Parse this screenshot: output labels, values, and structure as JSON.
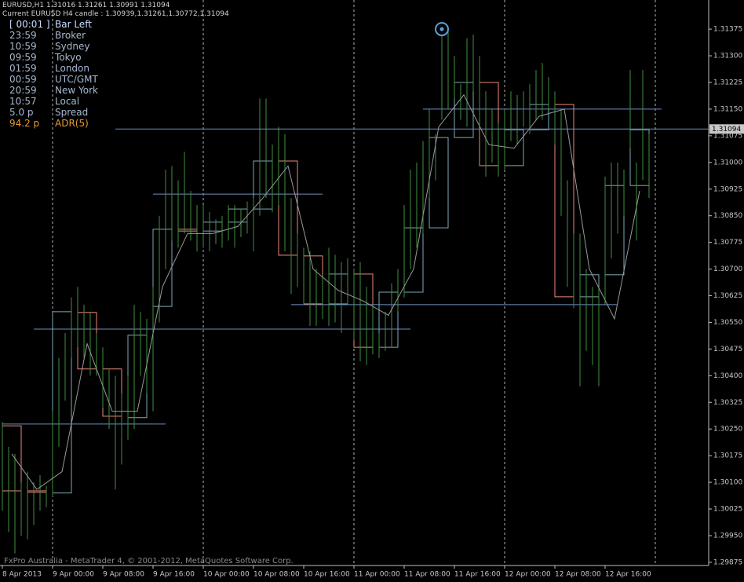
{
  "header": {
    "line1": "EURUSD,H1  1.31016 1.31261 1.30991 1.31094",
    "line2": "Current EURUSD H4 candle : 1.30939,1.31261,1.30772,1.31094"
  },
  "panel": [
    [
      "[ 00:01 ]",
      "Bar Left"
    ],
    [
      "23:59",
      "Broker"
    ],
    [
      "10:59",
      "Sydney"
    ],
    [
      "09:59",
      "Tokyo"
    ],
    [
      "01:59",
      "London"
    ],
    [
      "00:59",
      "UTC/GMT"
    ],
    [
      "20:59",
      "New York"
    ],
    [
      "10:57",
      "Local"
    ],
    [
      "5.0 p",
      "Spread"
    ],
    [
      "94.2 p",
      "ADR(5)"
    ]
  ],
  "copyright": "FxPro Australia - MetaTrader 4, © 2001-2012, MetaQuotes Software Corp.",
  "chart_data": {
    "type": "candlestick",
    "ylim": [
      1.29866,
      1.31457
    ],
    "yticks": [
      {
        "value": 1.31375,
        "label": "1.31375"
      },
      {
        "value": 1.313,
        "label": "1.31300"
      },
      {
        "value": 1.31225,
        "label": "1.31225"
      },
      {
        "value": 1.3115,
        "label": "1.31150"
      },
      {
        "value": 1.31075,
        "label": "1.31075"
      },
      {
        "value": 1.31,
        "label": "1.31000"
      },
      {
        "value": 1.30925,
        "label": "1.30925"
      },
      {
        "value": 1.3085,
        "label": "1.30850"
      },
      {
        "value": 1.30775,
        "label": "1.30775"
      },
      {
        "value": 1.307,
        "label": "1.30700"
      },
      {
        "value": 1.30625,
        "label": "1.30625"
      },
      {
        "value": 1.3055,
        "label": "1.30550"
      },
      {
        "value": 1.30475,
        "label": "1.30475"
      },
      {
        "value": 1.304,
        "label": "1.30400"
      },
      {
        "value": 1.30325,
        "label": "1.30325"
      },
      {
        "value": 1.3025,
        "label": "1.30250"
      },
      {
        "value": 1.30175,
        "label": "1.30175"
      },
      {
        "value": 1.301,
        "label": "1.30100"
      },
      {
        "value": 1.30025,
        "label": "1.30025"
      },
      {
        "value": 1.2995,
        "label": "1.29950"
      },
      {
        "value": 1.29875,
        "label": "1.29875"
      }
    ],
    "xticks": [
      {
        "value": 0,
        "label": "8 Apr 2013"
      },
      {
        "value": 8,
        "label": "9 Apr 00:00"
      },
      {
        "value": 16,
        "label": "9 Apr 08:00"
      },
      {
        "value": 24,
        "label": "9 Apr 16:00"
      },
      {
        "value": 32,
        "label": "10 Apr 00:00"
      },
      {
        "value": 40,
        "label": "10 Apr 08:00"
      },
      {
        "value": 48,
        "label": "10 Apr 16:00"
      },
      {
        "value": 56,
        "label": "11 Apr 00:00"
      },
      {
        "value": 64,
        "label": "11 Apr 08:00"
      },
      {
        "value": 72,
        "label": "11 Apr 16:00"
      },
      {
        "value": 80,
        "label": "12 Apr 00:00"
      },
      {
        "value": 88,
        "label": "12 Apr 08:00"
      },
      {
        "value": 96,
        "label": "12 Apr 16:00"
      }
    ],
    "day_separators": [
      8,
      32,
      56,
      80,
      104
    ],
    "up_color": "#7fa8b8",
    "down_color": "#f08878",
    "bar_color": "#3f8f3f",
    "ma_color": "#9a9a9a",
    "level_color": "#6f8fc0",
    "h4_candles": [
      [
        1.30259,
        1.30076
      ],
      [
        1.30076,
        1.30072
      ],
      [
        1.3007,
        1.3058
      ],
      [
        1.30578,
        1.30419
      ],
      [
        1.30419,
        1.30286
      ],
      [
        1.30282,
        1.30514
      ],
      [
        1.30595,
        1.30812
      ],
      [
        1.30812,
        1.30807
      ],
      [
        1.30807,
        1.30832
      ],
      [
        1.30832,
        1.30869
      ],
      [
        1.30869,
        1.31004
      ],
      [
        1.31004,
        1.30739
      ],
      [
        1.30737,
        1.30602
      ],
      [
        1.30602,
        1.30686
      ],
      [
        1.30686,
        1.3048
      ],
      [
        1.3048,
        1.30635
      ],
      [
        1.30635,
        1.30816
      ],
      [
        1.30816,
        1.3107
      ],
      [
        1.3107,
        1.31225
      ],
      [
        1.31225,
        1.30991
      ],
      [
        1.30991,
        1.31092
      ],
      [
        1.31092,
        1.31163
      ],
      [
        1.31163,
        1.30622
      ],
      [
        1.30622,
        1.30684
      ],
      [
        1.30684,
        1.30935
      ],
      [
        1.30935,
        1.31092
      ]
    ],
    "h1_bars": [
      [
        1.3027,
        1.3002
      ],
      [
        1.302,
        1.2996
      ],
      [
        1.3018,
        1.299
      ],
      [
        1.301,
        1.2995
      ],
      [
        1.3013,
        1.2994
      ],
      [
        1.301,
        1.2998
      ],
      [
        1.3012,
        1.3002
      ],
      [
        1.3009,
        1.3003
      ],
      [
        1.303,
        1.3006
      ],
      [
        1.3045,
        1.302
      ],
      [
        1.3052,
        1.3033
      ],
      [
        1.3062,
        1.3045
      ],
      [
        1.3065,
        1.3048
      ],
      [
        1.306,
        1.3045
      ],
      [
        1.3058,
        1.304
      ],
      [
        1.3052,
        1.304
      ],
      [
        1.3048,
        1.3031
      ],
      [
        1.3042,
        1.3025
      ],
      [
        1.304,
        1.3008
      ],
      [
        1.3035,
        1.3015
      ],
      [
        1.304,
        1.3022
      ],
      [
        1.306,
        1.3025
      ],
      [
        1.3058,
        1.304
      ],
      [
        1.3056,
        1.3035
      ],
      [
        1.3065,
        1.303
      ],
      [
        1.3085,
        1.3055
      ],
      [
        1.3098,
        1.307
      ],
      [
        1.3099,
        1.3078
      ],
      [
        1.3095,
        1.3076
      ],
      [
        1.3103,
        1.308
      ],
      [
        1.3092,
        1.3078
      ],
      [
        1.3088,
        1.3075
      ],
      [
        1.3088,
        1.3076
      ],
      [
        1.3086,
        1.3075
      ],
      [
        1.3084,
        1.3077
      ],
      [
        1.3085,
        1.3076
      ],
      [
        1.3088,
        1.3078
      ],
      [
        1.3088,
        1.3076
      ],
      [
        1.3087,
        1.3079
      ],
      [
        1.3089,
        1.308
      ],
      [
        1.309,
        1.3075
      ],
      [
        1.3118,
        1.3085
      ],
      [
        1.3118,
        1.309
      ],
      [
        1.3105,
        1.3086
      ],
      [
        1.311,
        1.3088
      ],
      [
        1.3108,
        1.3075
      ],
      [
        1.309,
        1.3063
      ],
      [
        1.308,
        1.3065
      ],
      [
        1.3076,
        1.306
      ],
      [
        1.3075,
        1.3054
      ],
      [
        1.307,
        1.3054
      ],
      [
        1.3068,
        1.3056
      ],
      [
        1.3076,
        1.3054
      ],
      [
        1.3074,
        1.3055
      ],
      [
        1.3072,
        1.3052
      ],
      [
        1.3073,
        1.306
      ],
      [
        1.307,
        1.305
      ],
      [
        1.3072,
        1.3044
      ],
      [
        1.3065,
        1.3043
      ],
      [
        1.306,
        1.3046
      ],
      [
        1.3052,
        1.3045
      ],
      [
        1.3058,
        1.3047
      ],
      [
        1.3066,
        1.3048
      ],
      [
        1.307,
        1.3058
      ],
      [
        1.3088,
        1.3062
      ],
      [
        1.3098,
        1.307
      ],
      [
        1.31,
        1.3076
      ],
      [
        1.3106,
        1.308
      ],
      [
        1.3115,
        1.309
      ],
      [
        1.3108,
        1.3095
      ],
      [
        1.3136,
        1.3112
      ],
      [
        1.3138,
        1.3115
      ],
      [
        1.313,
        1.3118
      ],
      [
        1.3122,
        1.3112
      ],
      [
        1.3135,
        1.311
      ],
      [
        1.3136,
        1.312
      ],
      [
        1.313,
        1.311
      ],
      [
        1.312,
        1.3096
      ],
      [
        1.3115,
        1.31
      ],
      [
        1.3111,
        1.3096
      ],
      [
        1.3115,
        1.3098
      ],
      [
        1.312,
        1.3106
      ],
      [
        1.3119,
        1.3105
      ],
      [
        1.312,
        1.311
      ],
      [
        1.3122,
        1.3108
      ],
      [
        1.3126,
        1.3112
      ],
      [
        1.3128,
        1.3112
      ],
      [
        1.3124,
        1.3115
      ],
      [
        1.312,
        1.3105
      ],
      [
        1.3115,
        1.3085
      ],
      [
        1.3095,
        1.3065
      ],
      [
        1.308,
        1.3059
      ],
      [
        1.308,
        1.3037
      ],
      [
        1.307,
        1.3047
      ],
      [
        1.3065,
        1.3043
      ],
      [
        1.3065,
        1.3037
      ],
      [
        1.3096,
        1.306
      ],
      [
        1.31,
        1.3073
      ],
      [
        1.31,
        1.308
      ],
      [
        1.3098,
        1.3085
      ],
      [
        1.3126,
        1.3104
      ],
      [
        1.31,
        1.3078
      ],
      [
        1.3126,
        1.3095
      ],
      [
        1.3108,
        1.309
      ]
    ],
    "ma": [
      1.3018,
      1.3008,
      1.3013,
      1.3049,
      1.303,
      1.303,
      1.3065,
      1.308,
      1.308,
      1.3082,
      1.309,
      1.3099,
      1.307,
      1.3064,
      1.3061,
      1.3057,
      1.307,
      1.311,
      1.3119,
      1.3105,
      1.3104,
      1.3113,
      1.3115,
      1.307,
      1.3056,
      1.3092
    ],
    "levels": [
      {
        "price": 1.30531,
        "from": 5,
        "to": 65
      },
      {
        "price": 1.30264,
        "from": 0,
        "to": 26
      },
      {
        "price": 1.30911,
        "from": 24,
        "to": 51
      },
      {
        "price": 1.306,
        "from": 46,
        "to": 98
      },
      {
        "price": 1.3115,
        "from": 67,
        "to": 105
      }
    ],
    "current_price": 1.31094,
    "current_from": 18,
    "marker": {
      "bar": 70,
      "price": 1.31375
    }
  }
}
